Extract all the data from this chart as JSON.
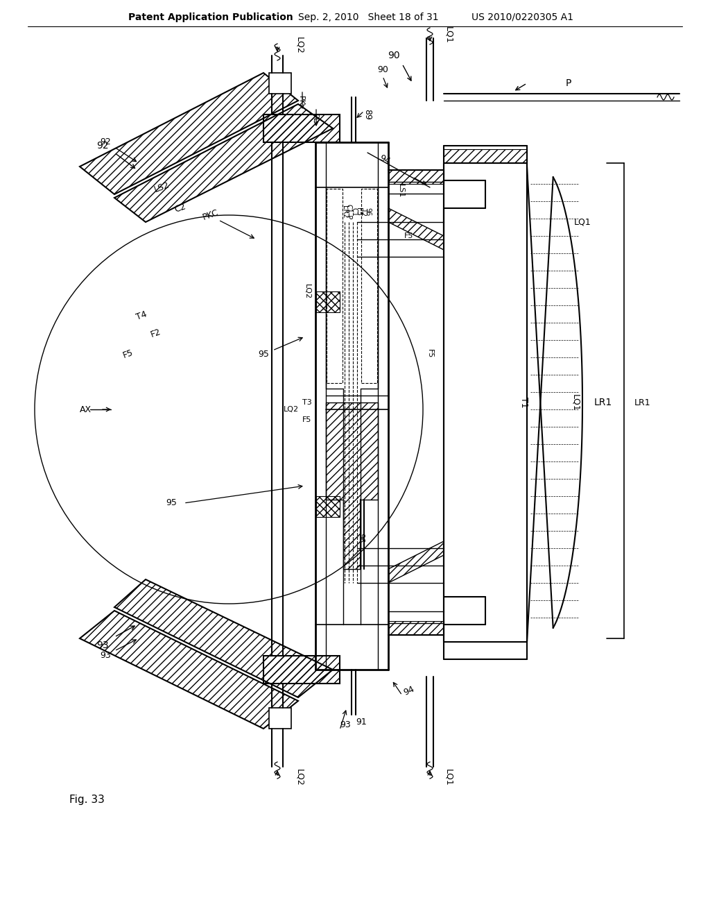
{
  "header_left": "Patent Application Publication",
  "header_mid": "Sep. 2, 2010   Sheet 18 of 31",
  "header_right": "US 2010/0220305 A1",
  "figure_label": "Fig. 33",
  "bg_color": "#ffffff"
}
